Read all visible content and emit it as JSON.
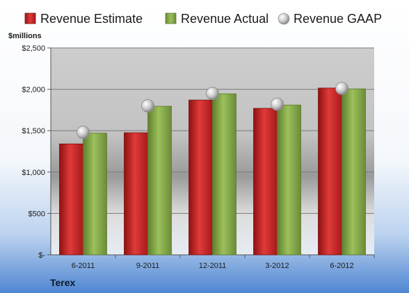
{
  "chart_data": {
    "type": "bar",
    "unit_label": "$millions",
    "company": "Terex",
    "categories": [
      "6-2011",
      "9-2011",
      "12-2011",
      "3-2012",
      "6-2012"
    ],
    "ylim": [
      0,
      2500
    ],
    "y_ticks": [
      0,
      500,
      1000,
      1500,
      2000,
      2500
    ],
    "y_tick_labels": [
      "$-",
      "$500",
      "$1,000",
      "$1,500",
      "$2,000",
      "$2,500"
    ],
    "grid": true,
    "legend_position": "top",
    "series": [
      {
        "name": "Revenue Estimate",
        "kind": "bar",
        "color": "#d22b2b",
        "values": [
          1340,
          1475,
          1870,
          1770,
          2015
        ]
      },
      {
        "name": "Revenue Actual",
        "kind": "bar",
        "color": "#8aae4e",
        "values": [
          1470,
          1795,
          1945,
          1810,
          2005
        ]
      },
      {
        "name": "Revenue GAAP",
        "kind": "marker",
        "color": "#c8c8c8",
        "values": [
          1480,
          1800,
          1950,
          1820,
          2010
        ]
      }
    ]
  }
}
